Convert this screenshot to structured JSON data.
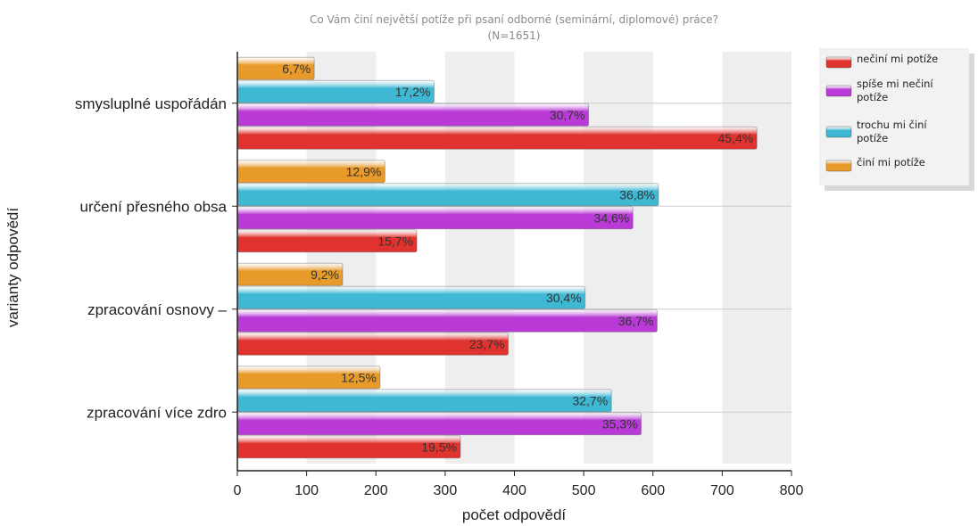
{
  "chart_data": {
    "type": "bar",
    "orientation": "horizontal",
    "title": "Co Vám činí největší potíže při psaní odborné (seminární, diplomové) práce?",
    "subtitle": "(N=1651)",
    "xlabel": "počet odpovědí",
    "ylabel": "varianty odpovědí",
    "xlim": [
      0,
      800
    ],
    "xticks": [
      "0",
      "100",
      "200",
      "300",
      "400",
      "500",
      "600",
      "700",
      "800"
    ],
    "grid": "alternating vertical bands",
    "legend_position": "top-right",
    "categories": [
      "smysluplné uspořádán",
      "určení přesného obsa",
      "zpracování osnovy –",
      "zpracování více zdro"
    ],
    "series": [
      {
        "name": "nečiní mi potíže",
        "color": "#e0332f",
        "values": [
          750,
          259,
          391,
          322
        ],
        "labels": [
          "45,4%",
          "15,7%",
          "23,7%",
          "19,5%"
        ]
      },
      {
        "name": "spíše mi nečiní potíže",
        "color": "#b93ad6",
        "values": [
          507,
          571,
          606,
          583
        ],
        "labels": [
          "30,7%",
          "34,6%",
          "36,7%",
          "35,3%"
        ]
      },
      {
        "name": "trochu mi činí potíže",
        "color": "#3fb8d4",
        "values": [
          284,
          608,
          502,
          540
        ],
        "labels": [
          "17,2%",
          "36,8%",
          "30,4%",
          "32,7%"
        ]
      },
      {
        "name": "činí mi potíže",
        "color": "#e89a2a",
        "values": [
          111,
          213,
          152,
          206
        ],
        "labels": [
          "6,7%",
          "12,9%",
          "9,2%",
          "12,5%"
        ]
      }
    ]
  }
}
